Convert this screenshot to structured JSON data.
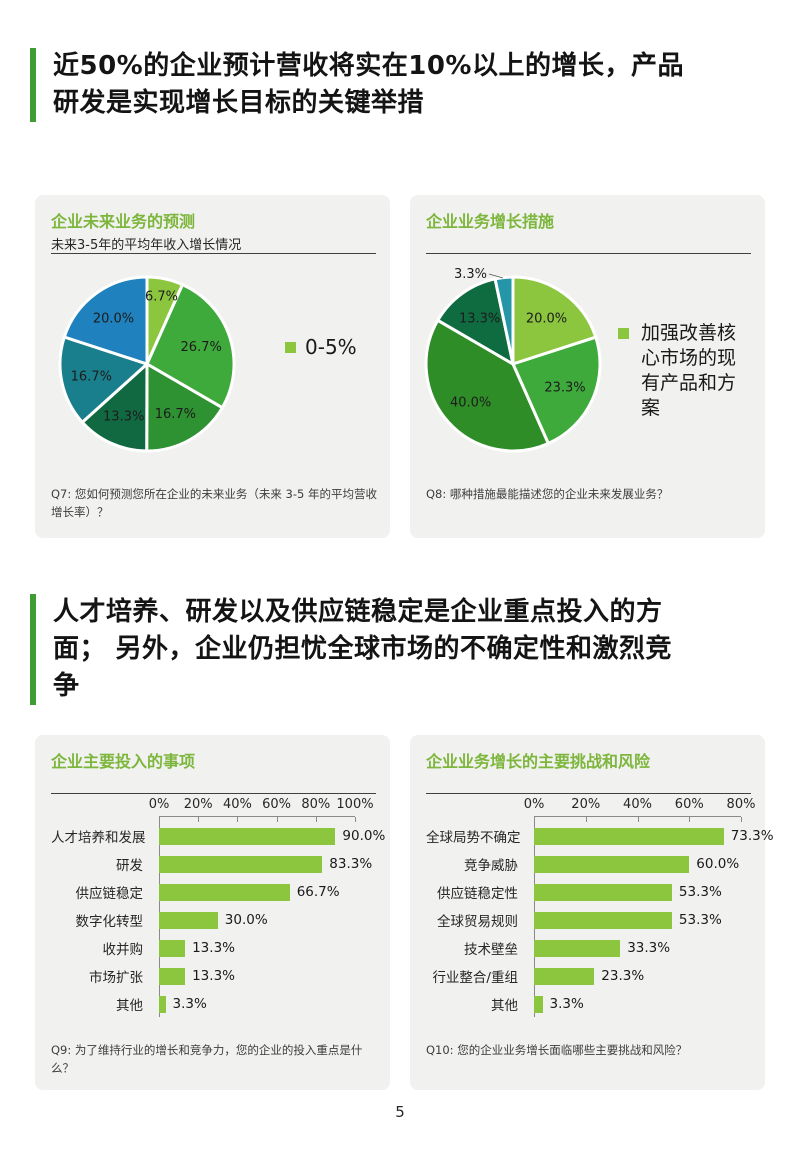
{
  "page": {
    "number": "5"
  },
  "colors": {
    "accent-bar": "#3f9c35",
    "card-bg": "#f1f1ef",
    "panel-title": "#7db63c",
    "bar-fill": "#8cc63f",
    "axis": "#8a8a8a",
    "rule": "#404040"
  },
  "headers": [
    {
      "text": "近50%的企业预计营收将实在10%以上的增长，产品研发是实现增长目标的关键举措"
    },
    {
      "text": "人才培养、研发以及供应链稳定是企业重点投入的方面； 另外，企业仍担忧全球市场的不确定性和激烈竞争"
    }
  ],
  "chart_data": [
    {
      "type": "pie",
      "panel_title": "企业未来业务的预测",
      "subtitle": "未来3-5年的平均年收入增长情况",
      "labels": [
        "6.7%",
        "26.7%",
        "16.7%",
        "13.3%",
        "16.7%",
        "20.0%"
      ],
      "values": [
        6.7,
        26.7,
        16.7,
        13.3,
        16.7,
        20.0
      ],
      "colors": [
        "#8cc63f",
        "#3faa3c",
        "#2e9132",
        "#116942",
        "#1a7f8c",
        "#1f82be"
      ],
      "start_angle_deg": 0,
      "legend_position": "right",
      "legend": [
        {
          "label": "0-5%",
          "color": "#8cc63f"
        }
      ],
      "footnote": "Q7: 您如何预测您所在企业的未来业务（未来 3-5 年的平均营收增长率）？"
    },
    {
      "type": "pie",
      "panel_title": "企业业务增长措施",
      "subtitle": "",
      "labels": [
        "20.0%",
        "23.3%",
        "40.0%",
        "13.3%",
        "3.3%"
      ],
      "values": [
        20.0,
        23.3,
        40.0,
        13.3,
        3.3
      ],
      "colors": [
        "#8cc63f",
        "#3faa3c",
        "#2f8d28",
        "#0f6b40",
        "#2496a8"
      ],
      "start_angle_deg": 0,
      "legend_position": "right",
      "legend": [
        {
          "label": "加强改善核心市场的现有产品和方案",
          "color": "#8cc63f"
        }
      ],
      "footnote": "Q8: 哪种措施最能描述您的企业未来发展业务？"
    },
    {
      "type": "bar",
      "panel_title": "企业主要投入的事项",
      "categories": [
        "人才培养和发展",
        "研发",
        "供应链稳定",
        "数字化转型",
        "收并购",
        "市场扩张",
        "其他"
      ],
      "values": [
        90.0,
        83.3,
        66.7,
        30.0,
        13.3,
        13.3,
        3.3
      ],
      "value_labels": [
        "90.0%",
        "83.3%",
        "66.7%",
        "30.0%",
        "13.3%",
        "13.3%",
        "3.3%"
      ],
      "axis_ticks": [
        "0%",
        "20%",
        "40%",
        "60%",
        "80%",
        "100%"
      ],
      "xlim": [
        0,
        100
      ],
      "bar_color": "#8cc63f",
      "footnote": "Q9: 为了维持行业的增长和竞争力，您的企业的投入重点是什么？"
    },
    {
      "type": "bar",
      "panel_title": "企业业务增长的主要挑战和风险",
      "categories": [
        "全球局势不确定",
        "竞争威胁",
        "供应链稳定性",
        "全球贸易规则",
        "技术壁垒",
        "行业整合/重组",
        "其他"
      ],
      "values": [
        73.3,
        60.0,
        53.3,
        53.3,
        33.3,
        23.3,
        3.3
      ],
      "value_labels": [
        "73.3%",
        "60.0%",
        "53.3%",
        "53.3%",
        "33.3%",
        "23.3%",
        "3.3%"
      ],
      "axis_ticks": [
        "0%",
        "20%",
        "40%",
        "60%",
        "80%"
      ],
      "xlim": [
        0,
        80
      ],
      "bar_color": "#8cc63f",
      "footnote": "Q10: 您的企业业务增长面临哪些主要挑战和风险？"
    }
  ]
}
